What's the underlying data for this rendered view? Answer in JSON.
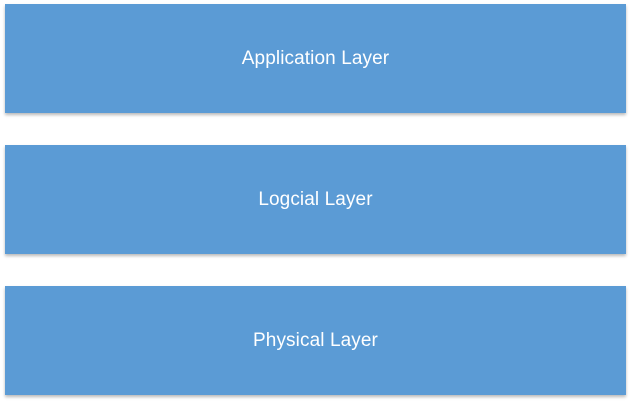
{
  "layers": [
    {
      "label": "Application Layer"
    },
    {
      "label": "Logcial Layer"
    },
    {
      "label": "Physical Layer"
    }
  ],
  "colors": {
    "box_fill": "#5b9bd5",
    "text": "#ffffff",
    "background": "#ffffff"
  }
}
